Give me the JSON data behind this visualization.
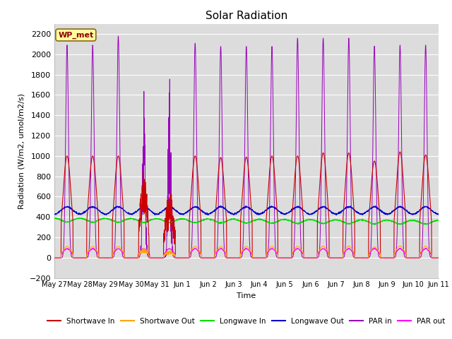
{
  "title": "Solar Radiation",
  "ylabel": "Radiation (W/m2, umol/m2/s)",
  "xlabel": "Time",
  "ylim": [
    -200,
    2300
  ],
  "bg_color": "#dcdcdc",
  "fig_bg": "#ffffff",
  "station_label": "WP_met",
  "x_tick_labels": [
    "May 27",
    "May 28",
    "May 29",
    "May 30",
    "May 31",
    "Jun 1",
    "Jun 2",
    "Jun 3",
    "Jun 4",
    "Jun 5",
    "Jun 6",
    "Jun 7",
    "Jun 8",
    "Jun 9",
    "Jun 10",
    "Jun 11"
  ],
  "legend": [
    {
      "label": "Shortwave In",
      "color": "#cc0000"
    },
    {
      "label": "Shortwave Out",
      "color": "#ffa500"
    },
    {
      "label": "Longwave In",
      "color": "#00dd00"
    },
    {
      "label": "Longwave Out",
      "color": "#0000cc"
    },
    {
      "label": "PAR in",
      "color": "#9900bb"
    },
    {
      "label": "PAR out",
      "color": "#ff00ff"
    }
  ]
}
